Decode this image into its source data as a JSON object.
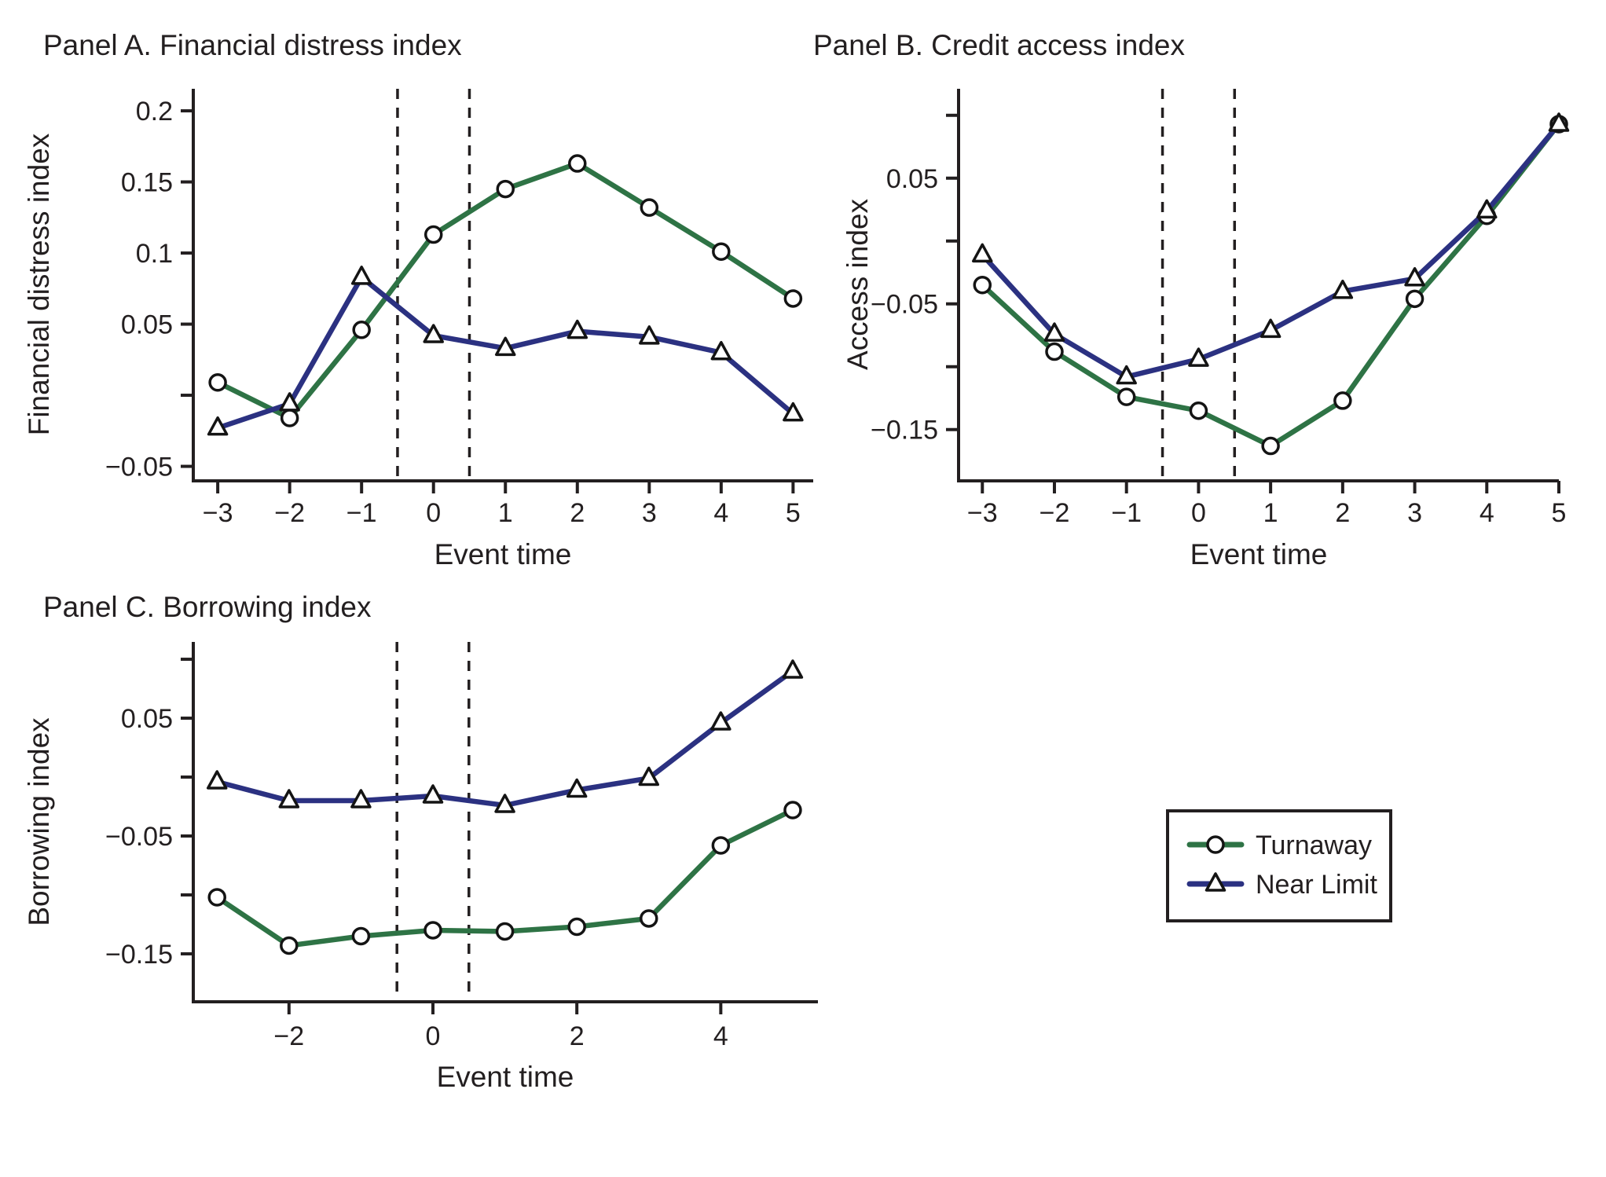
{
  "figure": {
    "background": "#ffffff",
    "text_color": "#231f20",
    "axis_color": "#231f20"
  },
  "legend": {
    "items": [
      {
        "label": "Turnaway",
        "marker": "circle-icon",
        "color": "#2e7345"
      },
      {
        "label": "Near Limit",
        "marker": "triangle-icon",
        "color": "#2b3181"
      }
    ]
  },
  "chart_data": [
    {
      "type": "line",
      "panel": "A",
      "title": "Panel A. Financial distress index",
      "xlabel": "Event time",
      "ylabel": "Financial distress index",
      "x": [
        -3,
        -2,
        -1,
        0,
        1,
        2,
        3,
        4,
        5
      ],
      "series": [
        {
          "name": "Turnaway",
          "marker": "circle",
          "color": "#2e7345",
          "values": [
            0.009,
            -0.016,
            0.046,
            0.113,
            0.145,
            0.163,
            0.132,
            0.101,
            0.068
          ]
        },
        {
          "name": "Near Limit",
          "marker": "triangle",
          "color": "#2b3181",
          "values": [
            -0.023,
            -0.006,
            0.083,
            0.042,
            0.033,
            0.045,
            0.041,
            0.03,
            -0.013
          ]
        }
      ],
      "ylim": [
        -0.0602,
        0.2155
      ],
      "xlim": [
        -3.34,
        5.28
      ],
      "yticks": [
        {
          "v": 0.2,
          "label": "0.2"
        },
        {
          "v": 0.15,
          "label": "0.15"
        },
        {
          "v": 0.1,
          "label": "0.1"
        },
        {
          "v": 0.05,
          "label": "0.05"
        },
        {
          "v": 0,
          "label": ""
        },
        {
          "v": -0.05,
          "label": "−0.05"
        }
      ],
      "xticks": [
        {
          "v": -3,
          "label": "−3"
        },
        {
          "v": -2,
          "label": "−2"
        },
        {
          "v": -1,
          "label": "−1"
        },
        {
          "v": 0,
          "label": "0"
        },
        {
          "v": 1,
          "label": "1"
        },
        {
          "v": 2,
          "label": "2"
        },
        {
          "v": 3,
          "label": "3"
        },
        {
          "v": 4,
          "label": "4"
        },
        {
          "v": 5,
          "label": "5"
        }
      ],
      "vlines": [
        -0.5,
        0.5
      ],
      "grid": false
    },
    {
      "type": "line",
      "panel": "B",
      "title": "Panel B. Credit access index",
      "xlabel": "Event time",
      "ylabel": "Access index",
      "x": [
        -3,
        -2,
        -1,
        0,
        1,
        2,
        3,
        4,
        5
      ],
      "series": [
        {
          "name": "Turnaway",
          "marker": "circle",
          "color": "#2e7345",
          "values": [
            -0.035,
            -0.088,
            -0.124,
            -0.135,
            -0.163,
            -0.127,
            -0.046,
            0.02,
            0.093
          ]
        },
        {
          "name": "Near Limit",
          "marker": "triangle",
          "color": "#2b3181",
          "values": [
            -0.011,
            -0.074,
            -0.108,
            -0.094,
            -0.071,
            -0.04,
            -0.03,
            0.024,
            0.093
          ]
        }
      ],
      "ylim": [
        -0.1908,
        0.1211
      ],
      "xlim": [
        -3.33,
        5.0
      ],
      "yticks": [
        {
          "v": 0.1,
          "label": ""
        },
        {
          "v": 0.05,
          "label": "0.05"
        },
        {
          "v": 0,
          "label": ""
        },
        {
          "v": -0.05,
          "label": "−0.05"
        },
        {
          "v": -0.1,
          "label": ""
        },
        {
          "v": -0.15,
          "label": "−0.15"
        }
      ],
      "xticks": [
        {
          "v": -3,
          "label": "−3"
        },
        {
          "v": -2,
          "label": "−2"
        },
        {
          "v": -1,
          "label": "−1"
        },
        {
          "v": 0,
          "label": "0"
        },
        {
          "v": 1,
          "label": "1"
        },
        {
          "v": 2,
          "label": "2"
        },
        {
          "v": 3,
          "label": "3"
        },
        {
          "v": 4,
          "label": "4"
        },
        {
          "v": 5,
          "label": "5"
        }
      ],
      "vlines": [
        -0.5,
        0.5
      ],
      "grid": false
    },
    {
      "type": "line",
      "panel": "C",
      "title": "Panel C. Borrowing index",
      "xlabel": "Event time",
      "ylabel": "Borrowing index",
      "x": [
        -3,
        -2,
        -1,
        0,
        1,
        2,
        3,
        4,
        5
      ],
      "series": [
        {
          "name": "Turnaway",
          "marker": "circle",
          "color": "#2e7345",
          "values": [
            -0.102,
            -0.143,
            -0.135,
            -0.13,
            -0.131,
            -0.127,
            -0.12,
            -0.058,
            -0.028
          ]
        },
        {
          "name": "Near Limit",
          "marker": "triangle",
          "color": "#2b3181",
          "values": [
            -0.004,
            -0.02,
            -0.02,
            -0.016,
            -0.024,
            -0.011,
            -0.001,
            0.046,
            0.09
          ]
        }
      ],
      "ylim": [
        -0.1907,
        0.1147
      ],
      "xlim": [
        -3.33,
        5.35
      ],
      "yticks": [
        {
          "v": 0.1,
          "label": ""
        },
        {
          "v": 0.05,
          "label": "0.05"
        },
        {
          "v": 0,
          "label": ""
        },
        {
          "v": -0.05,
          "label": "−0.05"
        },
        {
          "v": -0.1,
          "label": ""
        },
        {
          "v": -0.15,
          "label": "−0.15"
        }
      ],
      "xticks": [
        {
          "v": -2,
          "label": "−2"
        },
        {
          "v": 0,
          "label": "0"
        },
        {
          "v": 2,
          "label": "2"
        },
        {
          "v": 4,
          "label": "4"
        }
      ],
      "vlines": [
        -0.5,
        0.5
      ],
      "grid": false
    }
  ]
}
